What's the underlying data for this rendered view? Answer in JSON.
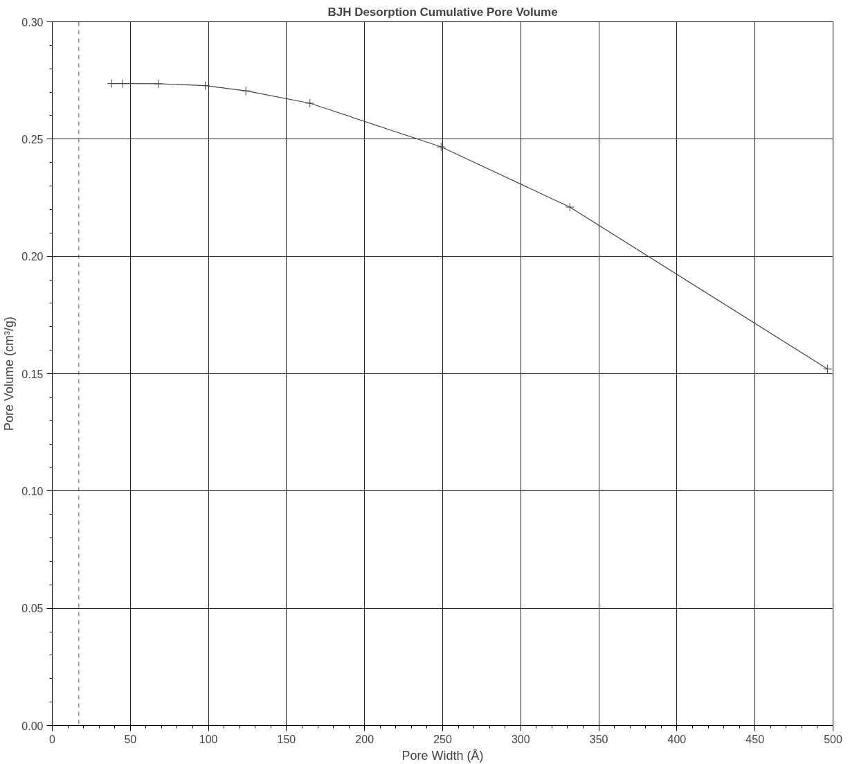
{
  "chart_data": {
    "type": "line",
    "title": "BJH Desorption Cumulative Pore Volume",
    "xlabel": "Pore Width (Å)",
    "ylabel": "Pore Volume (cm³/g)",
    "x": [
      38,
      45,
      68,
      98,
      124,
      165,
      249,
      331.5,
      496.5
    ],
    "series": [
      {
        "color": "#444444",
        "values": [
          0.2737,
          0.2737,
          0.2736,
          0.2728,
          0.2706,
          0.2653,
          0.2467,
          0.221,
          0.152
        ]
      }
    ],
    "xlim": [
      0,
      500
    ],
    "ylim": [
      0,
      0.3
    ],
    "xticks": [
      0,
      50,
      100,
      150,
      200,
      250,
      300,
      350,
      400,
      450,
      500
    ],
    "yticks": [
      {
        "value": 0,
        "label": "0.00"
      },
      {
        "value": 0.05,
        "label": "0.05"
      },
      {
        "value": 0.1,
        "label": "0.10"
      },
      {
        "value": 0.15,
        "label": "0.15"
      },
      {
        "value": 0.2,
        "label": "0.20"
      },
      {
        "value": 0.25,
        "label": "0.25"
      },
      {
        "value": 0.3,
        "label": "0.30"
      }
    ],
    "ref_lines": [
      {
        "axis": "x",
        "value": 17,
        "line_style": "dashed",
        "color": "#555555"
      }
    ],
    "grid": true,
    "marker": "cross",
    "line_style": "solid"
  }
}
